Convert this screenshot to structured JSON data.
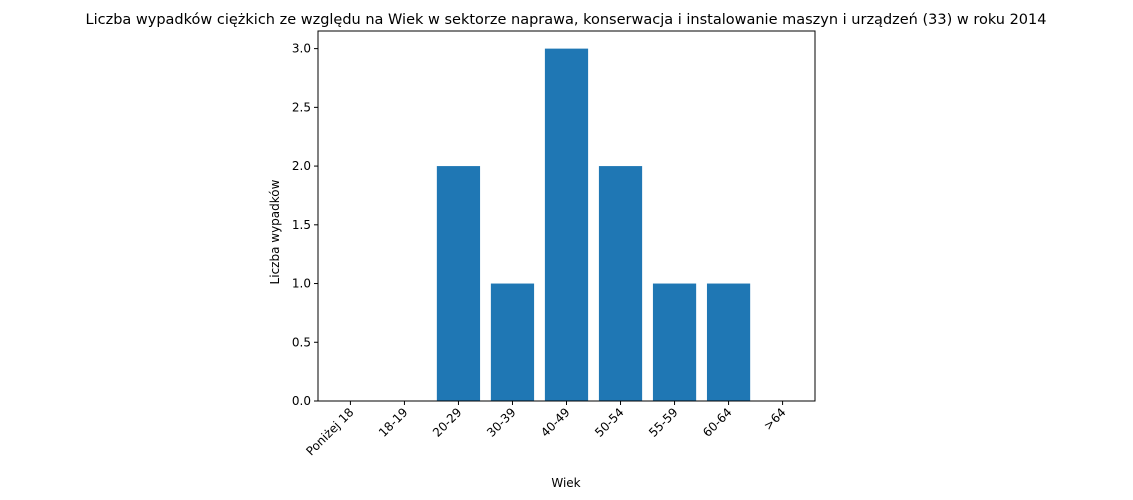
{
  "chart_data": {
    "type": "bar",
    "title": "Liczba wypadków ciężkich ze względu na Wiek w sektorze naprawa, konserwacja i instalowanie maszyn i urządzeń  (33) w roku 2014",
    "xlabel": "Wiek",
    "ylabel": "Liczba wypadków",
    "categories": [
      "Poniżej 18",
      "18-19",
      "20-29",
      "30-39",
      "40-49",
      "50-54",
      "55-59",
      "60-64",
      ">64"
    ],
    "values": [
      0,
      0,
      2,
      1,
      3,
      2,
      1,
      1,
      0
    ],
    "ylim": [
      0,
      3.15
    ],
    "yticks": [
      "0.0",
      "0.5",
      "1.0",
      "1.5",
      "2.0",
      "2.5",
      "3.0"
    ],
    "bar_color": "#1f77b4",
    "grid": false,
    "xtick_rotation": 45
  }
}
